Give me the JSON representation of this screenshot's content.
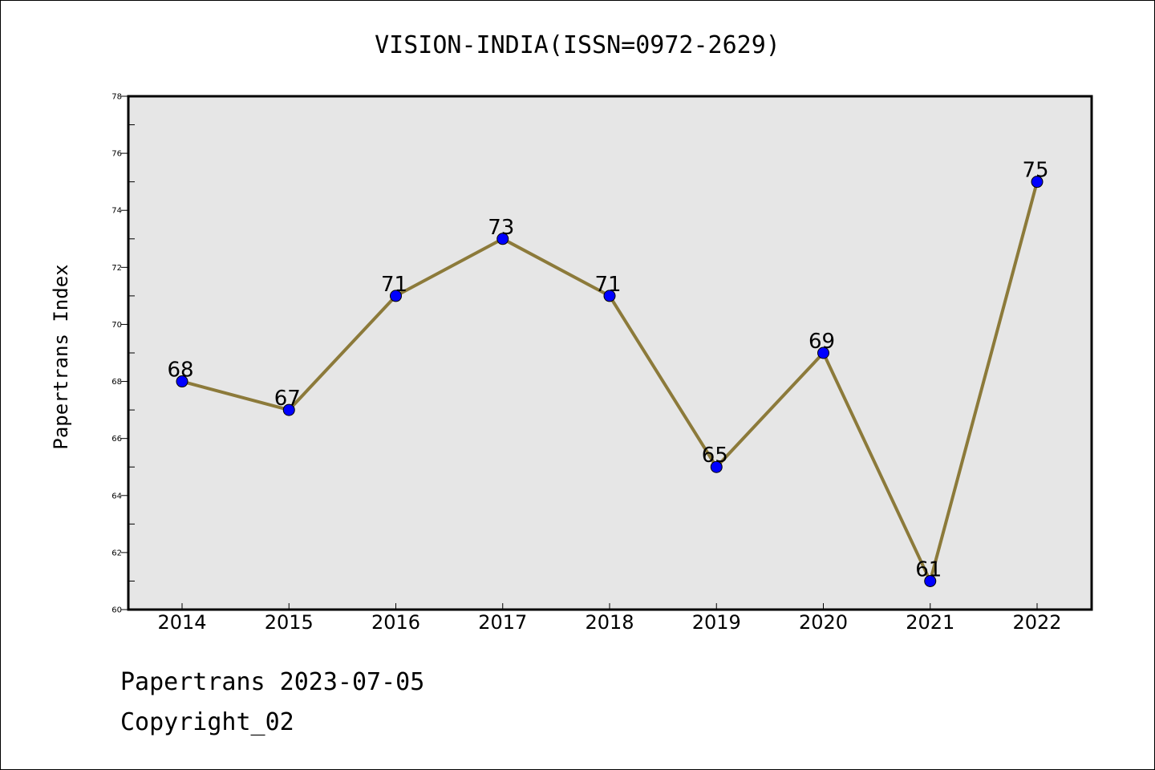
{
  "chart_data": {
    "type": "line",
    "title": "VISION-INDIA(ISSN=0972-2629)",
    "xlabel": "",
    "ylabel": "Papertrans Index",
    "x": [
      "2014",
      "2015",
      "2016",
      "2017",
      "2018",
      "2019",
      "2020",
      "2021",
      "2022"
    ],
    "values": [
      68,
      67,
      71,
      73,
      71,
      65,
      69,
      61,
      75
    ],
    "data_labels": [
      "68",
      "67",
      "71",
      "73",
      "71",
      "65",
      "69",
      "61",
      "75"
    ],
    "ylim": [
      60,
      78
    ],
    "yticks": [
      60,
      62,
      64,
      66,
      68,
      70,
      72,
      74,
      76,
      78
    ],
    "grid": false,
    "legend": "none",
    "colors": {
      "line": "#8c7a3a",
      "marker": "#0000ff",
      "plot_background": "#e6e6e6"
    }
  },
  "footer": {
    "line1": "Papertrans 2023-07-05",
    "line2": "Copyright_02"
  }
}
